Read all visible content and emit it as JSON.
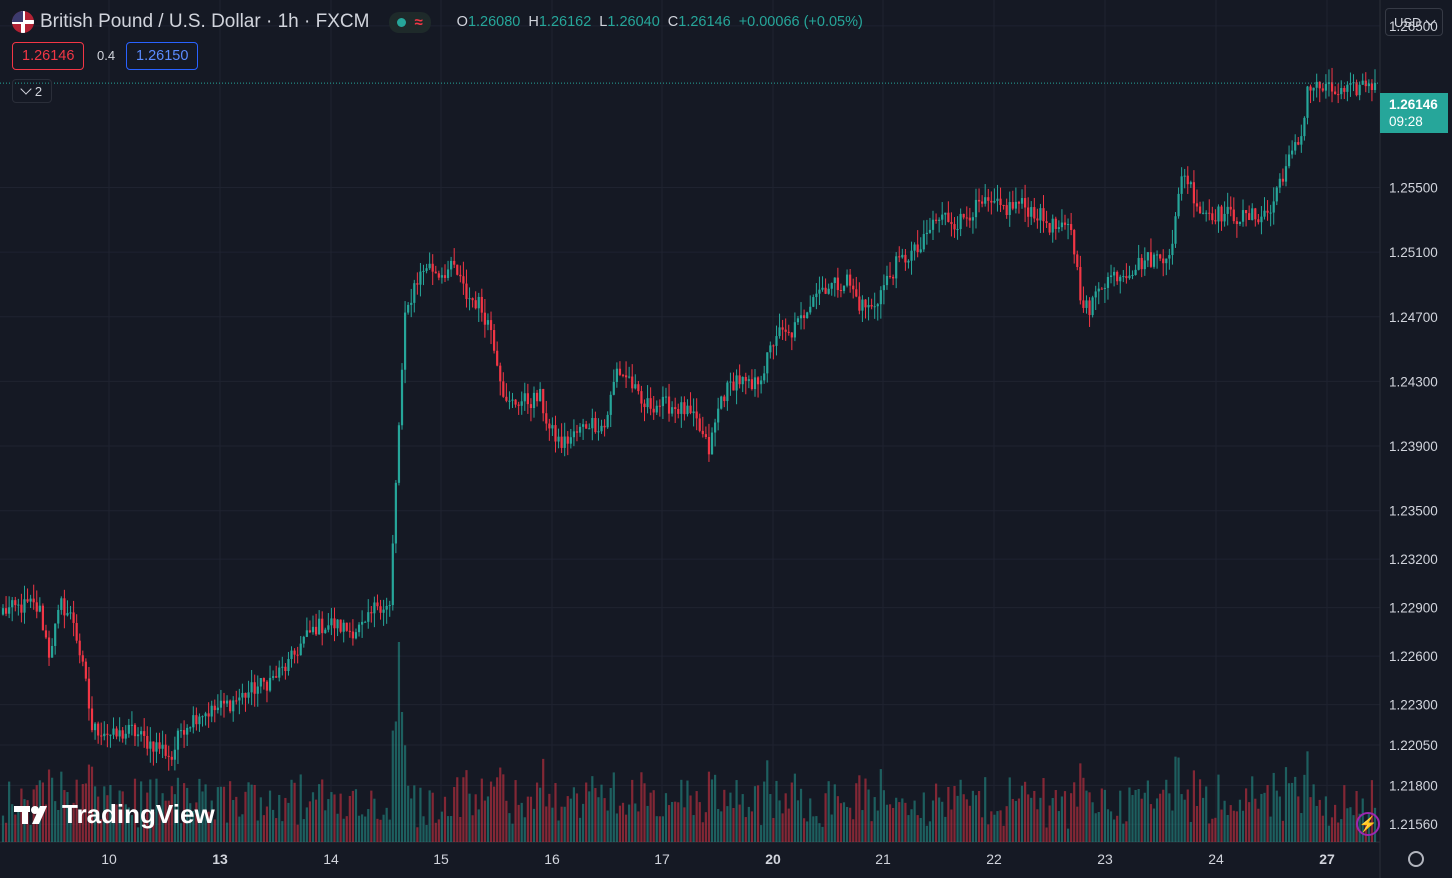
{
  "header": {
    "symbol_title": "British Pound / U.S. Dollar · 1h · FXCM",
    "flag_icon": "uk-us-flag-icon",
    "status_icon": "market-open-dot-icon",
    "wave_icon": "approx-wave-icon",
    "ohlc": {
      "o_label": "O",
      "o_value": "1.26080",
      "h_label": "H",
      "h_value": "1.26162",
      "l_label": "L",
      "l_value": "1.26040",
      "c_label": "C",
      "c_value": "1.26146",
      "change": "+0.00066 (+0.05%)"
    }
  },
  "trade": {
    "sell_price": "1.26146",
    "spread": "0.4",
    "buy_price": "1.26150"
  },
  "indicators_toggle": {
    "count": "2"
  },
  "currency_selector": {
    "label": "USD"
  },
  "last_price_label": {
    "price": "1.26146",
    "countdown": "09:28"
  },
  "logo": {
    "text": "TradingView"
  },
  "colors": {
    "up": "#26a69a",
    "down": "#f23645",
    "background": "#151924",
    "grid": "#1f2330"
  },
  "chart_data": {
    "type": "candlestick",
    "symbol": "GBPUSD",
    "timeframe": "1h",
    "y_ticks": [
      "1.26500",
      "1.25500",
      "1.25100",
      "1.24700",
      "1.24300",
      "1.23900",
      "1.23500",
      "1.23200",
      "1.22900",
      "1.22600",
      "1.22300",
      "1.22050",
      "1.21800",
      "1.21560"
    ],
    "y_tick_values": [
      1.265,
      1.255,
      1.251,
      1.247,
      1.243,
      1.239,
      1.235,
      1.232,
      1.229,
      1.226,
      1.223,
      1.2205,
      1.218,
      1.2156
    ],
    "x_ticks": [
      "10",
      "13",
      "14",
      "15",
      "16",
      "17",
      "20",
      "21",
      "22",
      "23",
      "24",
      "27"
    ],
    "x_tick_bold": [
      "13",
      "20",
      "27"
    ],
    "ylim": [
      1.2145,
      1.2666
    ],
    "last_price": 1.26146,
    "anchor_closes": [
      [
        0,
        1.2288
      ],
      [
        5,
        1.229
      ],
      [
        9,
        1.2292
      ],
      [
        12,
        1.2288
      ],
      [
        15,
        1.2262
      ],
      [
        19,
        1.2292
      ],
      [
        23,
        1.2282
      ],
      [
        27,
        1.2242
      ],
      [
        29,
        1.2215
      ],
      [
        33,
        1.2214
      ],
      [
        36,
        1.221
      ],
      [
        42,
        1.2214
      ],
      [
        47,
        1.2207
      ],
      [
        52,
        1.2203
      ],
      [
        55,
        1.2197
      ],
      [
        58,
        1.2215
      ],
      [
        64,
        1.2225
      ],
      [
        68,
        1.2226
      ],
      [
        75,
        1.2232
      ],
      [
        82,
        1.224
      ],
      [
        88,
        1.2246
      ],
      [
        93,
        1.2255
      ],
      [
        98,
        1.227
      ],
      [
        102,
        1.2278
      ],
      [
        107,
        1.228
      ],
      [
        113,
        1.2276
      ],
      [
        118,
        1.2278
      ],
      [
        122,
        1.2293
      ],
      [
        126,
        1.229
      ],
      [
        129,
        1.2403
      ],
      [
        131,
        1.2468
      ],
      [
        134,
        1.249
      ],
      [
        138,
        1.2502
      ],
      [
        142,
        1.2497
      ],
      [
        147,
        1.25
      ],
      [
        151,
        1.2483
      ],
      [
        155,
        1.2478
      ],
      [
        159,
        1.2463
      ],
      [
        164,
        1.2415
      ],
      [
        168,
        1.2418
      ],
      [
        172,
        1.2418
      ],
      [
        175,
        1.242
      ],
      [
        178,
        1.24
      ],
      [
        182,
        1.2391
      ],
      [
        187,
        1.2398
      ],
      [
        191,
        1.2405
      ],
      [
        196,
        1.2402
      ],
      [
        200,
        1.2437
      ],
      [
        204,
        1.2432
      ],
      [
        208,
        1.2415
      ],
      [
        213,
        1.2416
      ],
      [
        218,
        1.2415
      ],
      [
        222,
        1.2412
      ],
      [
        226,
        1.2404
      ],
      [
        230,
        1.2387
      ],
      [
        234,
        1.242
      ],
      [
        239,
        1.2432
      ],
      [
        244,
        1.2425
      ],
      [
        248,
        1.2438
      ],
      [
        252,
        1.246
      ],
      [
        256,
        1.2458
      ],
      [
        260,
        1.2468
      ],
      [
        264,
        1.2485
      ],
      [
        268,
        1.2489
      ],
      [
        272,
        1.249
      ],
      [
        275,
        1.2493
      ],
      [
        279,
        1.2478
      ],
      [
        283,
        1.2475
      ],
      [
        287,
        1.2489
      ],
      [
        291,
        1.2502
      ],
      [
        295,
        1.2508
      ],
      [
        299,
        1.2512
      ],
      [
        303,
        1.2528
      ],
      [
        307,
        1.2532
      ],
      [
        311,
        1.2528
      ],
      [
        315,
        1.2535
      ],
      [
        319,
        1.2539
      ],
      [
        323,
        1.2538
      ],
      [
        327,
        1.2537
      ],
      [
        331,
        1.254
      ],
      [
        336,
        1.2535
      ],
      [
        341,
        1.2527
      ],
      [
        345,
        1.2523
      ],
      [
        348,
        1.2525
      ],
      [
        351,
        1.2485
      ],
      [
        354,
        1.2472
      ],
      [
        357,
        1.249
      ],
      [
        362,
        1.2496
      ],
      [
        367,
        1.2499
      ],
      [
        372,
        1.2505
      ],
      [
        377,
        1.2507
      ],
      [
        381,
        1.2513
      ],
      [
        384,
        1.256
      ],
      [
        386,
        1.2555
      ],
      [
        390,
        1.2536
      ],
      [
        395,
        1.2534
      ],
      [
        400,
        1.2533
      ],
      [
        405,
        1.2531
      ],
      [
        409,
        1.2533
      ],
      [
        413,
        1.2535
      ],
      [
        416,
        1.2555
      ],
      [
        420,
        1.257
      ],
      [
        423,
        1.2582
      ],
      [
        425,
        1.2612
      ],
      [
        428,
        1.2612
      ],
      [
        432,
        1.261
      ],
      [
        436,
        1.2608
      ],
      [
        440,
        1.261
      ],
      [
        444,
        1.2615
      ],
      [
        447,
        1.2614
      ]
    ],
    "volume_note": "relative hourly volume histogram along bottom"
  }
}
